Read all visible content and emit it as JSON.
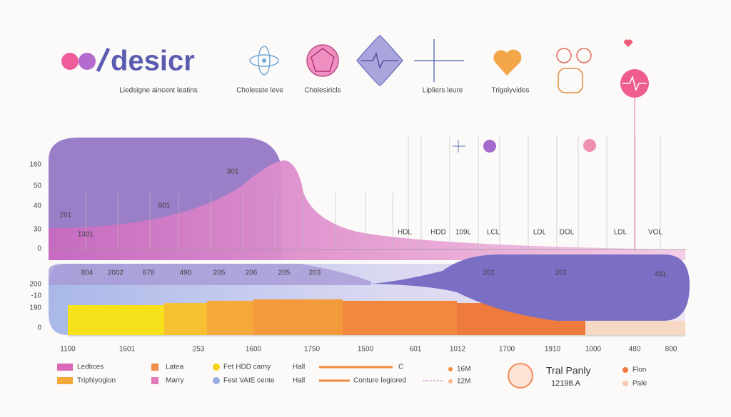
{
  "logo": "desicr",
  "icons": [
    "Liedsigne aincent leatins",
    "Cholesste leve",
    "Cholesiricls",
    "Lipliers leure",
    "Trigolyvides"
  ],
  "top_chart": {
    "y_labels": [
      "160",
      "50",
      "40",
      "30",
      "0"
    ],
    "point_labels": [
      "201",
      "1301",
      "801",
      "301"
    ],
    "column_labels": [
      "HDL",
      "HDD",
      "109L",
      "LCL",
      "LDL",
      "DOL",
      "LDL",
      "VOL"
    ]
  },
  "bottom_chart": {
    "y_labels": [
      "200",
      "-10",
      "190",
      "0"
    ],
    "row_labels": [
      "804",
      "2002",
      "678",
      "490",
      "205",
      "206",
      "205",
      "203"
    ],
    "right_labels": [
      "201",
      "201",
      "401"
    ],
    "x_labels": [
      "1100",
      "1601",
      "253",
      "1600",
      "1750",
      "1500",
      "601",
      "1012",
      "1700",
      "1910",
      "1000",
      "480",
      "800"
    ]
  },
  "legend": {
    "col1": [
      "Ledtices",
      "Triphiyogion"
    ],
    "col2": [
      "Latea",
      "Marry"
    ],
    "col3": [
      "Fet HDD carny",
      "Fest VAIE cente"
    ],
    "col4": [
      "Hall",
      "Hall"
    ],
    "col5": [
      "C",
      "Conture legiored"
    ],
    "col6": [
      "16M",
      "12M"
    ],
    "brand": {
      "name": "Tral Panly",
      "code": "12198.A"
    },
    "col7": [
      "Flon",
      "Pale"
    ]
  }
}
